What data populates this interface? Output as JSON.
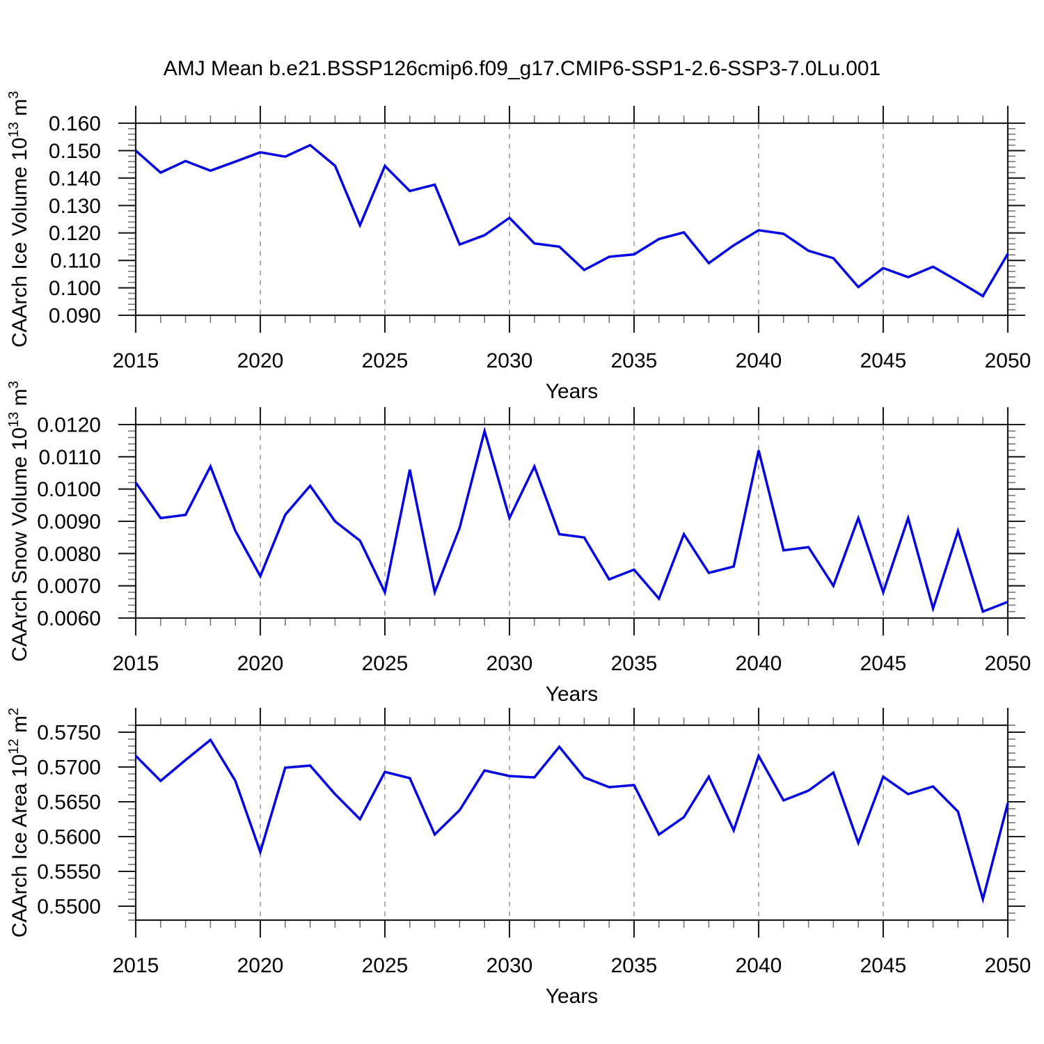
{
  "title": "AMJ Mean b.e21.BSSP126cmip6.f09_g17.CMIP6-SSP1-2.6-SSP3-7.0Lu.001",
  "style": {
    "background": "#ffffff",
    "text_color": "#000000",
    "axis_color": "#1a1a1a",
    "minor_tick_color": "#777777",
    "grid_color": "#a6a6a6",
    "line_color": "#0202e6"
  },
  "chart_data": [
    {
      "type": "line",
      "name": "ice-volume",
      "ylabel": "CAArch Ice Volume 10^{13} m^{3}",
      "xlabel": "Years",
      "x": [
        2015,
        2016,
        2017,
        2018,
        2019,
        2020,
        2021,
        2022,
        2023,
        2024,
        2025,
        2026,
        2027,
        2028,
        2029,
        2030,
        2031,
        2032,
        2033,
        2034,
        2035,
        2036,
        2037,
        2038,
        2039,
        2040,
        2041,
        2042,
        2043,
        2044,
        2045,
        2046,
        2047,
        2048,
        2049,
        2050
      ],
      "values": [
        0.15,
        0.142,
        0.1462,
        0.1427,
        0.146,
        0.1494,
        0.1478,
        0.152,
        0.1445,
        0.1228,
        0.1444,
        0.1353,
        0.1376,
        0.1158,
        0.1192,
        0.1255,
        0.1162,
        0.115,
        0.1065,
        0.1113,
        0.1122,
        0.1178,
        0.1202,
        0.109,
        0.1155,
        0.121,
        0.1197,
        0.1135,
        0.1108,
        0.1003,
        0.1072,
        0.1039,
        0.1077,
        0.1025,
        0.097,
        0.1124
      ],
      "xlim": [
        2015,
        2050
      ],
      "ylim": [
        0.09,
        0.16
      ],
      "yticks": [
        "0.160",
        "0.150",
        "0.140",
        "0.130",
        "0.120",
        "0.110",
        "0.100",
        "0.090"
      ],
      "y_minor_step": 0.002,
      "xticks": [
        2015,
        2020,
        2025,
        2030,
        2035,
        2040,
        2045,
        2050
      ],
      "x_minor_step": 1,
      "grid": "vertical-dashed-at-interior-major-x",
      "legend": "none",
      "line_color": "#0202e6"
    },
    {
      "type": "line",
      "name": "snow-volume",
      "ylabel": "CAArch Snow Volume 10^{13} m^{3}",
      "xlabel": "Years",
      "x": [
        2015,
        2016,
        2017,
        2018,
        2019,
        2020,
        2021,
        2022,
        2023,
        2024,
        2025,
        2026,
        2027,
        2028,
        2029,
        2030,
        2031,
        2032,
        2033,
        2034,
        2035,
        2036,
        2037,
        2038,
        2039,
        2040,
        2041,
        2042,
        2043,
        2044,
        2045,
        2046,
        2047,
        2048,
        2049,
        2050
      ],
      "values": [
        0.0102,
        0.0091,
        0.0092,
        0.0107,
        0.0087,
        0.0073,
        0.0092,
        0.0101,
        0.009,
        0.0084,
        0.0068,
        0.0106,
        0.0068,
        0.0088,
        0.0118,
        0.0091,
        0.0107,
        0.0086,
        0.0085,
        0.0072,
        0.0075,
        0.0066,
        0.0086,
        0.0074,
        0.0076,
        0.0112,
        0.0081,
        0.0082,
        0.007,
        0.0091,
        0.0068,
        0.0091,
        0.0063,
        0.0087,
        0.0062,
        0.0065
      ],
      "xlim": [
        2015,
        2050
      ],
      "ylim": [
        0.006,
        0.012
      ],
      "yticks": [
        "0.0120",
        "0.0110",
        "0.0100",
        "0.0090",
        "0.0080",
        "0.0070",
        "0.0060"
      ],
      "y_minor_step": 0.0002,
      "xticks": [
        2015,
        2020,
        2025,
        2030,
        2035,
        2040,
        2045,
        2050
      ],
      "x_minor_step": 1,
      "grid": "vertical-dashed-at-interior-major-x",
      "legend": "none",
      "line_color": "#0202e6"
    },
    {
      "type": "line",
      "name": "ice-area",
      "ylabel": "CAArch Ice Area 10^{12} m^{2}",
      "xlabel": "Years",
      "x": [
        2015,
        2016,
        2017,
        2018,
        2019,
        2020,
        2021,
        2022,
        2023,
        2024,
        2025,
        2026,
        2027,
        2028,
        2029,
        2030,
        2031,
        2032,
        2033,
        2034,
        2035,
        2036,
        2037,
        2038,
        2039,
        2040,
        2041,
        2042,
        2043,
        2044,
        2045,
        2046,
        2047,
        2048,
        2049,
        2050
      ],
      "values": [
        0.5716,
        0.568,
        0.571,
        0.5739,
        0.568,
        0.5578,
        0.5699,
        0.5702,
        0.5661,
        0.5625,
        0.5693,
        0.5684,
        0.5603,
        0.5638,
        0.5695,
        0.5687,
        0.5685,
        0.5729,
        0.5685,
        0.5671,
        0.5674,
        0.5603,
        0.5628,
        0.5686,
        0.5609,
        0.5716,
        0.5652,
        0.5666,
        0.5692,
        0.5591,
        0.5686,
        0.5661,
        0.5672,
        0.5636,
        0.551,
        0.5648
      ],
      "xlim": [
        2015,
        2050
      ],
      "ylim": [
        0.548,
        0.576
      ],
      "yticks": [
        "0.5750",
        "0.5700",
        "0.5650",
        "0.5600",
        "0.5550",
        "0.5500"
      ],
      "y_minor_step": 0.001,
      "xticks": [
        2015,
        2020,
        2025,
        2030,
        2035,
        2040,
        2045,
        2050
      ],
      "x_minor_step": 1,
      "grid": "vertical-dashed-at-interior-major-x",
      "legend": "none",
      "line_color": "#0202e6"
    }
  ]
}
